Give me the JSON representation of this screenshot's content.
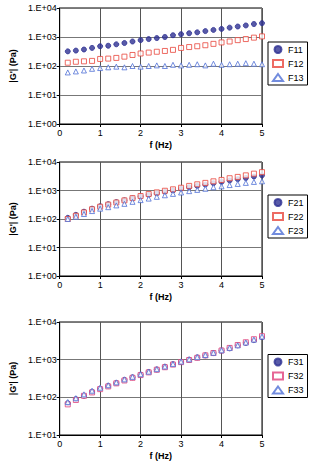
{
  "chart_data": [
    {
      "type": "scatter",
      "x_label": "f (Hz)",
      "y_label": "|G'| (Pa)",
      "log": "y",
      "grid": true,
      "legend": "right",
      "xlim": [
        0,
        5
      ],
      "xticks": [
        0,
        1,
        2,
        3,
        4,
        5
      ],
      "ylim": [
        1,
        10000
      ],
      "yticks": [
        {
          "value": 1,
          "label": "1.E+00"
        },
        {
          "value": 10,
          "label": "1.E+01"
        },
        {
          "value": 100,
          "label": "1.E+02"
        },
        {
          "value": 1000,
          "label": "1.E+03"
        },
        {
          "value": 10000,
          "label": "1.E+04"
        }
      ],
      "x": [
        0.2,
        0.4,
        0.6,
        0.8,
        1,
        1.2,
        1.4,
        1.6,
        1.8,
        2,
        2.2,
        2.4,
        2.6,
        2.8,
        3,
        3.2,
        3.4,
        3.6,
        3.8,
        4,
        4.2,
        4.4,
        4.6,
        4.8,
        5
      ],
      "series": [
        {
          "name": "F11",
          "color": "#2e3192",
          "marker": "circle",
          "values": [
            320,
            340,
            370,
            420,
            480,
            500,
            560,
            620,
            700,
            780,
            850,
            920,
            1000,
            1150,
            1250,
            1350,
            1450,
            1600,
            1750,
            1900,
            2100,
            2300,
            2500,
            2800,
            3000
          ]
        },
        {
          "name": "F12",
          "color": "#e8463c",
          "marker": "square_open",
          "values": [
            130,
            140,
            145,
            150,
            175,
            180,
            190,
            210,
            240,
            270,
            290,
            310,
            330,
            360,
            420,
            450,
            480,
            520,
            580,
            650,
            700,
            780,
            850,
            950,
            1050
          ]
        },
        {
          "name": "F13",
          "color": "#4f6fd6",
          "marker": "triangle_open",
          "values": [
            60,
            65,
            70,
            80,
            85,
            90,
            95,
            90,
            100,
            95,
            100,
            105,
            100,
            110,
            105,
            110,
            115,
            105,
            120,
            110,
            115,
            120,
            125,
            120,
            115
          ]
        }
      ]
    },
    {
      "type": "scatter",
      "x_label": "f (Hz)",
      "y_label": "|G'| (Pa)",
      "log": "y",
      "grid": true,
      "legend": "right",
      "xlim": [
        0,
        5
      ],
      "xticks": [
        0,
        1,
        2,
        3,
        4,
        5
      ],
      "ylim": [
        1,
        10000
      ],
      "yticks": [
        {
          "value": 1,
          "label": "1.E+00"
        },
        {
          "value": 10,
          "label": "1.E+01"
        },
        {
          "value": 100,
          "label": "1.E+02"
        },
        {
          "value": 1000,
          "label": "1.E+03"
        },
        {
          "value": 10000,
          "label": "1.E+04"
        }
      ],
      "x": [
        0.2,
        0.4,
        0.6,
        0.8,
        1,
        1.2,
        1.4,
        1.6,
        1.8,
        2,
        2.2,
        2.4,
        2.6,
        2.8,
        3,
        3.2,
        3.4,
        3.6,
        3.8,
        4,
        4.2,
        4.4,
        4.6,
        4.8,
        5
      ],
      "series": [
        {
          "name": "F21",
          "color": "#2e3192",
          "marker": "circle",
          "values": [
            110,
            140,
            180,
            230,
            280,
            330,
            390,
            450,
            530,
            620,
            700,
            800,
            900,
            1000,
            1150,
            1300,
            1450,
            1600,
            1800,
            2000,
            2250,
            2500,
            2750,
            3100,
            3400
          ]
        },
        {
          "name": "F22",
          "color": "#e8463c",
          "marker": "square_open",
          "values": [
            100,
            130,
            170,
            220,
            270,
            320,
            380,
            450,
            540,
            640,
            750,
            860,
            980,
            1100,
            1250,
            1450,
            1650,
            1850,
            2100,
            2350,
            2700,
            3000,
            3400,
            3900,
            4400
          ]
        },
        {
          "name": "F23",
          "color": "#4f6fd6",
          "marker": "triangle_open",
          "values": [
            100,
            120,
            150,
            190,
            230,
            260,
            300,
            340,
            400,
            460,
            520,
            600,
            680,
            760,
            850,
            950,
            1050,
            1150,
            1300,
            1400,
            1550,
            1700,
            1850,
            2000,
            2100
          ]
        }
      ]
    },
    {
      "type": "scatter",
      "x_label": "f (Hz)",
      "y_label": "|G'| (Pa)",
      "log": "y",
      "grid": true,
      "legend": "right",
      "xlim": [
        0,
        5
      ],
      "xticks": [
        0,
        1,
        2,
        3,
        4,
        5
      ],
      "ylim": [
        10,
        10000
      ],
      "yticks": [
        {
          "value": 10,
          "label": "1.E+01"
        },
        {
          "value": 100,
          "label": "1.E+02"
        },
        {
          "value": 1000,
          "label": "1.E+03"
        },
        {
          "value": 10000,
          "label": "1.E+04"
        }
      ],
      "x": [
        0.2,
        0.4,
        0.6,
        0.8,
        1,
        1.2,
        1.4,
        1.6,
        1.8,
        2,
        2.2,
        2.4,
        2.6,
        2.8,
        3,
        3.2,
        3.4,
        3.6,
        3.8,
        4,
        4.2,
        4.4,
        4.6,
        4.8,
        5
      ],
      "series": [
        {
          "name": "F31",
          "color": "#2e3192",
          "marker": "circle",
          "values": [
            70,
            90,
            110,
            140,
            170,
            200,
            240,
            290,
            340,
            400,
            470,
            550,
            650,
            760,
            880,
            1000,
            1150,
            1300,
            1500,
            1750,
            2000,
            2400,
            2800,
            3300,
            4000
          ]
        },
        {
          "name": "F32",
          "color": "#e0407a",
          "marker": "square_open",
          "values": [
            65,
            85,
            110,
            135,
            165,
            195,
            235,
            280,
            330,
            390,
            460,
            540,
            630,
            740,
            860,
            980,
            1120,
            1300,
            1500,
            1750,
            2050,
            2450,
            2900,
            3500,
            4200
          ]
        },
        {
          "name": "F33",
          "color": "#4f6fd6",
          "marker": "triangle_open",
          "values": [
            75,
            95,
            120,
            150,
            180,
            210,
            250,
            300,
            350,
            410,
            480,
            560,
            660,
            770,
            890,
            1020,
            1170,
            1330,
            1520,
            1770,
            2050,
            2400,
            2850,
            3400,
            4100
          ]
        }
      ]
    }
  ]
}
